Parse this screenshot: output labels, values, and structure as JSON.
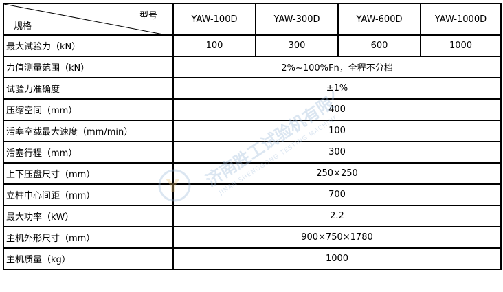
{
  "header": {
    "corner_top": "型号",
    "corner_bottom": "规格",
    "models": [
      "YAW-100D",
      "YAW-300D",
      "YAW-600D",
      "YAW-1000D"
    ]
  },
  "rows": [
    {
      "label": "最大试验力（kN）",
      "values": [
        "100",
        "300",
        "600",
        "1000"
      ]
    },
    {
      "label": "力值测量范围（kN）",
      "value": "2%~100%Fn，全程不分档"
    },
    {
      "label": "试验力准确度",
      "value": "±1%"
    },
    {
      "label": "压缩空间（mm）",
      "value": "400"
    },
    {
      "label": "活塞空载最大速度（mm/min）",
      "value": "100"
    },
    {
      "label": "活塞行程（mm）",
      "value": "300"
    },
    {
      "label": "上下压盘尺寸（mm）",
      "value": "250×250"
    },
    {
      "label": "立柱中心间距（mm）",
      "value": "700"
    },
    {
      "label": "最大功率（kW）",
      "value": "2.2"
    },
    {
      "label": "主机外形尺寸（mm）",
      "value": "900×750×1780"
    },
    {
      "label": "主机质量（kg）",
      "value": "1000"
    }
  ],
  "watermark": {
    "cn": "济南胜工试验机有限公司",
    "en": "JINAN SHENGGONG TESTING MACHINE CO., LTD",
    "color": "#9bb8d8"
  }
}
